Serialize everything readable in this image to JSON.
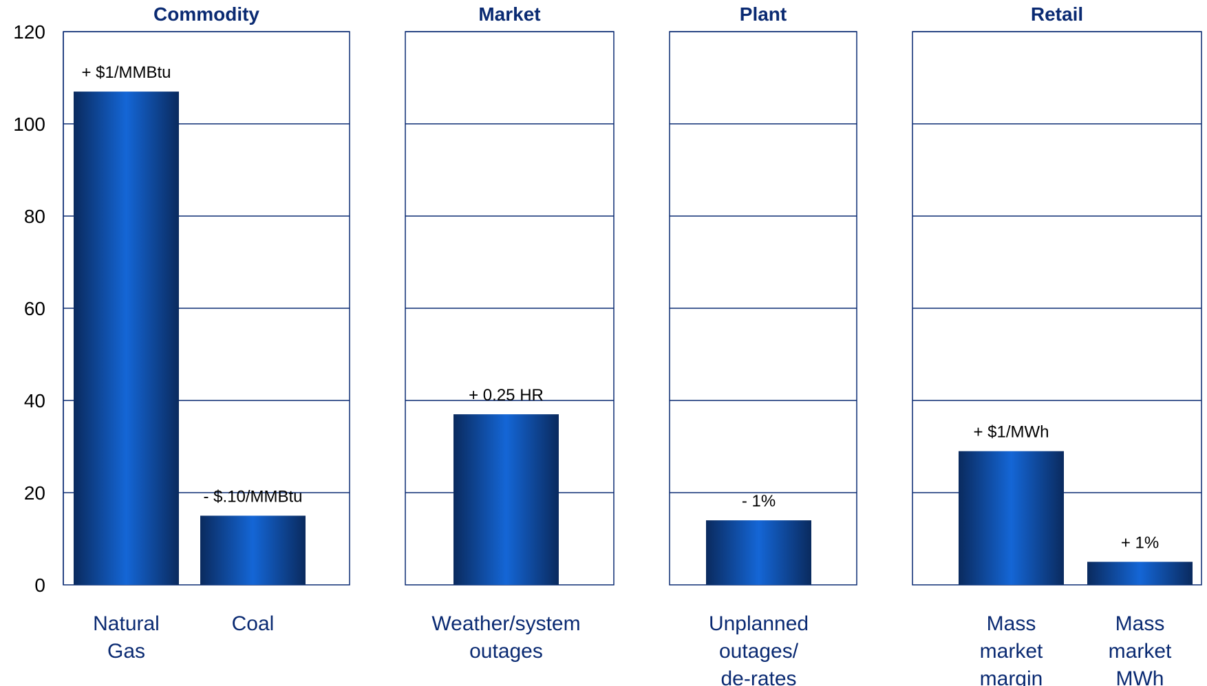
{
  "chart_data": {
    "type": "bar",
    "ylim": [
      0,
      120
    ],
    "yticks": [
      "0",
      "20",
      "40",
      "60",
      "80",
      "100",
      "120"
    ],
    "grid": true,
    "colors": {
      "bar_dark": "#0a2a5e",
      "bar_light": "#1466d6",
      "title": "#0a2a72",
      "grid": "#0a2a72"
    },
    "panels": [
      {
        "title": "Commodity",
        "bars": [
          {
            "category": [
              "Natural",
              "Gas"
            ],
            "value": 107,
            "label": "+ $1/MMBtu"
          },
          {
            "category": [
              "Coal"
            ],
            "value": 15,
            "label": "- $.10/MMBtu"
          }
        ]
      },
      {
        "title": "Market",
        "bars": [
          {
            "category": [
              "Weather/system",
              "outages"
            ],
            "value": 37,
            "label": "+ 0.25 HR"
          }
        ]
      },
      {
        "title": "Plant",
        "bars": [
          {
            "category": [
              "Unplanned",
              "outages/",
              "de-rates"
            ],
            "value": 14,
            "label": "- 1%"
          }
        ]
      },
      {
        "title": "Retail",
        "bars": [
          {
            "category": [
              "Mass",
              "market",
              "margin"
            ],
            "value": 29,
            "label": "+ $1/MWh"
          },
          {
            "category": [
              "Mass",
              "market",
              "MWh"
            ],
            "value": 5,
            "label": "+ 1%"
          }
        ]
      }
    ]
  }
}
